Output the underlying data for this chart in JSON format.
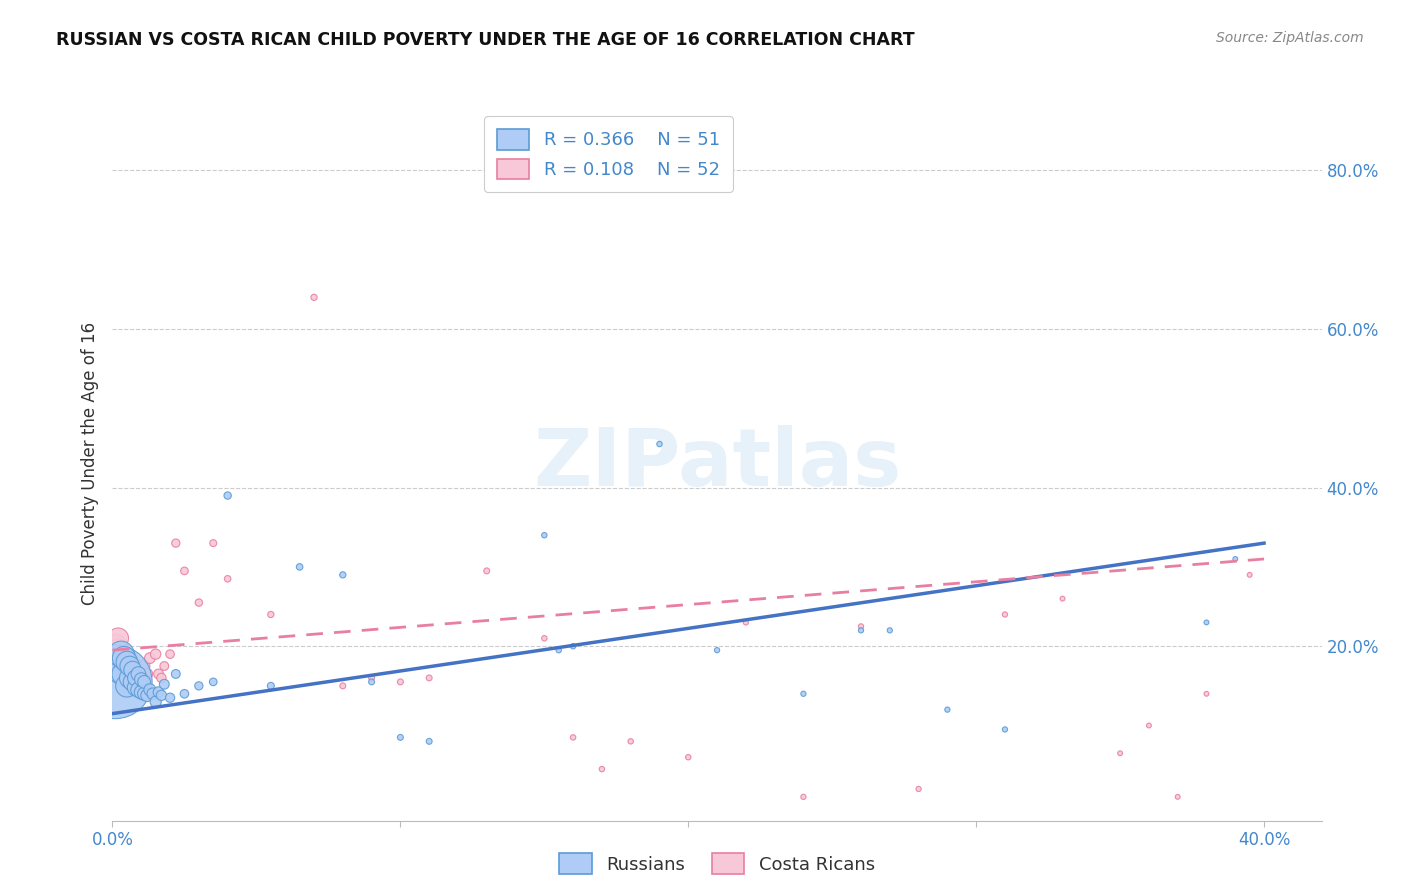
{
  "title": "RUSSIAN VS COSTA RICAN CHILD POVERTY UNDER THE AGE OF 16 CORRELATION CHART",
  "source": "Source: ZipAtlas.com",
  "ylabel": "Child Poverty Under the Age of 16",
  "xlim": [
    0.0,
    0.42
  ],
  "ylim": [
    -0.02,
    0.88
  ],
  "yticks": [
    0.2,
    0.4,
    0.6,
    0.8
  ],
  "ytick_labels": [
    "20.0%",
    "40.0%",
    "60.0%",
    "80.0%"
  ],
  "xticks": [
    0.0,
    0.1,
    0.2,
    0.3,
    0.4
  ],
  "xtick_labels": [
    "0.0%",
    "",
    "",
    "",
    "40.0%"
  ],
  "r_russian": "0.366",
  "n_russian": "51",
  "r_costa": "0.108",
  "n_costa": "52",
  "russian_fill": "#aeccf5",
  "russian_edge": "#5b9bd5",
  "costa_fill": "#f8c8d8",
  "costa_edge": "#e87fa0",
  "russian_line_color": "#4472c4",
  "costa_line_color": "#e87fa0",
  "background_color": "#ffffff",
  "watermark": "ZIPatlas",
  "russians_x": [
    0.001,
    0.002,
    0.003,
    0.003,
    0.004,
    0.004,
    0.005,
    0.005,
    0.006,
    0.006,
    0.007,
    0.007,
    0.008,
    0.008,
    0.009,
    0.009,
    0.01,
    0.01,
    0.011,
    0.011,
    0.012,
    0.013,
    0.014,
    0.015,
    0.016,
    0.017,
    0.018,
    0.02,
    0.022,
    0.025,
    0.03,
    0.035,
    0.04,
    0.055,
    0.065,
    0.08,
    0.09,
    0.1,
    0.11,
    0.15,
    0.155,
    0.16,
    0.19,
    0.21,
    0.24,
    0.26,
    0.27,
    0.29,
    0.31,
    0.38,
    0.39
  ],
  "russians_y": [
    0.155,
    0.175,
    0.17,
    0.19,
    0.165,
    0.185,
    0.15,
    0.18,
    0.16,
    0.175,
    0.155,
    0.17,
    0.148,
    0.16,
    0.145,
    0.165,
    0.142,
    0.158,
    0.14,
    0.155,
    0.138,
    0.145,
    0.14,
    0.13,
    0.142,
    0.138,
    0.152,
    0.135,
    0.165,
    0.14,
    0.15,
    0.155,
    0.39,
    0.15,
    0.3,
    0.29,
    0.155,
    0.085,
    0.08,
    0.34,
    0.195,
    0.2,
    0.455,
    0.195,
    0.14,
    0.22,
    0.22,
    0.12,
    0.095,
    0.23,
    0.31
  ],
  "russians_size": [
    2800,
    500,
    400,
    350,
    300,
    280,
    260,
    240,
    220,
    200,
    180,
    160,
    140,
    130,
    120,
    110,
    100,
    95,
    90,
    85,
    80,
    75,
    70,
    65,
    60,
    55,
    50,
    45,
    40,
    38,
    35,
    30,
    28,
    25,
    22,
    20,
    18,
    18,
    18,
    15,
    15,
    15,
    15,
    14,
    14,
    14,
    14,
    14,
    14,
    12,
    12
  ],
  "costa_x": [
    0.001,
    0.002,
    0.002,
    0.003,
    0.004,
    0.004,
    0.005,
    0.005,
    0.006,
    0.006,
    0.007,
    0.007,
    0.008,
    0.008,
    0.009,
    0.01,
    0.011,
    0.012,
    0.013,
    0.015,
    0.016,
    0.017,
    0.018,
    0.02,
    0.022,
    0.025,
    0.03,
    0.035,
    0.04,
    0.055,
    0.07,
    0.08,
    0.09,
    0.1,
    0.11,
    0.13,
    0.15,
    0.16,
    0.17,
    0.18,
    0.2,
    0.22,
    0.24,
    0.26,
    0.28,
    0.31,
    0.33,
    0.35,
    0.36,
    0.37,
    0.38,
    0.395
  ],
  "costa_y": [
    0.2,
    0.195,
    0.21,
    0.185,
    0.175,
    0.19,
    0.165,
    0.18,
    0.17,
    0.185,
    0.16,
    0.175,
    0.165,
    0.175,
    0.17,
    0.175,
    0.175,
    0.165,
    0.185,
    0.19,
    0.165,
    0.16,
    0.175,
    0.19,
    0.33,
    0.295,
    0.255,
    0.33,
    0.285,
    0.24,
    0.64,
    0.15,
    0.16,
    0.155,
    0.16,
    0.295,
    0.21,
    0.085,
    0.045,
    0.08,
    0.06,
    0.23,
    0.01,
    0.225,
    0.02,
    0.24,
    0.26,
    0.065,
    0.1,
    0.01,
    0.14,
    0.29
  ],
  "costa_size": [
    300,
    250,
    220,
    200,
    180,
    160,
    140,
    130,
    120,
    110,
    100,
    95,
    90,
    85,
    80,
    75,
    70,
    65,
    60,
    55,
    50,
    45,
    40,
    38,
    35,
    30,
    28,
    25,
    22,
    20,
    20,
    18,
    18,
    18,
    18,
    18,
    15,
    15,
    15,
    15,
    15,
    14,
    14,
    14,
    14,
    14,
    12,
    12,
    12,
    12,
    12,
    12
  ],
  "russian_line_x": [
    0.0,
    0.4
  ],
  "russian_line_y": [
    0.115,
    0.33
  ],
  "costa_line_x": [
    0.0,
    0.4
  ],
  "costa_line_y": [
    0.195,
    0.31
  ]
}
